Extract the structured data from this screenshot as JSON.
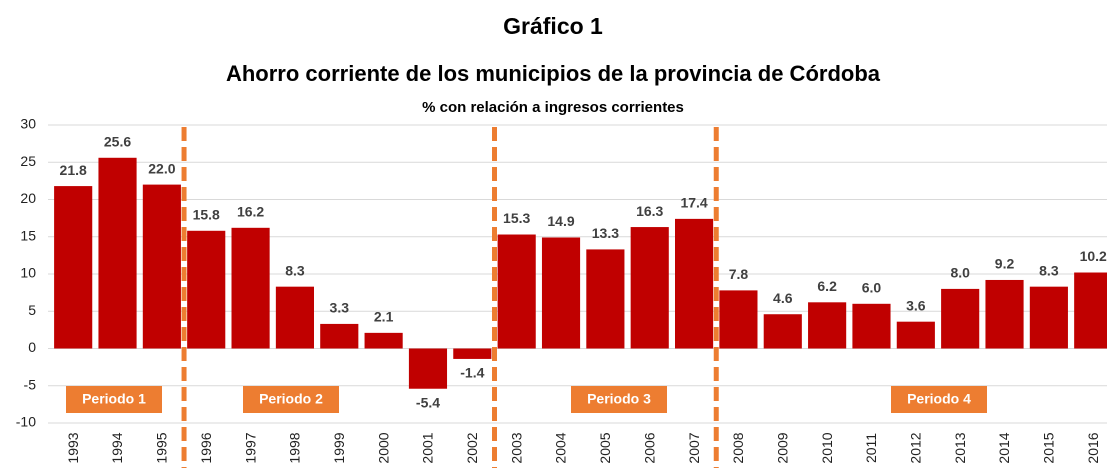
{
  "chart_data": {
    "type": "bar",
    "title": "Gráfico 1",
    "subtitle": "Ahorro corriente de los municipios de la provincia de Córdoba",
    "y_label": "% con relación a ingresos corrientes",
    "categories": [
      "1993",
      "1994",
      "1995",
      "1996",
      "1997",
      "1998",
      "1999",
      "2000",
      "2001",
      "2002",
      "2003",
      "2004",
      "2005",
      "2006",
      "2007",
      "2008",
      "2009",
      "2010",
      "2011",
      "2012",
      "2013",
      "2014",
      "2015",
      "2016"
    ],
    "values": [
      21.8,
      25.6,
      22.0,
      15.8,
      16.2,
      8.3,
      3.3,
      2.1,
      -5.4,
      -1.4,
      15.3,
      14.9,
      13.3,
      16.3,
      17.4,
      7.8,
      4.6,
      6.2,
      6.0,
      3.6,
      8.0,
      9.2,
      8.3,
      10.2
    ],
    "value_labels": [
      "21.8",
      "25.6",
      "22.0",
      "15.8",
      "16.2",
      "8.3",
      "3.3",
      "2.1",
      "-5.4",
      "-1.4",
      "15.3",
      "14.9",
      "13.3",
      "16.3",
      "17.4",
      "7.8",
      "4.6",
      "6.2",
      "6.0",
      "3.6",
      "8.0",
      "9.2",
      "8.3",
      "10.2"
    ],
    "color": "#c00000",
    "ylim": [
      -10,
      30
    ],
    "yticks": [
      -10,
      -5,
      0,
      5,
      10,
      15,
      20,
      25,
      30
    ],
    "grid": true,
    "periods": [
      {
        "label": "Periodo 1",
        "start": "1993",
        "end": "1995"
      },
      {
        "label": "Periodo 2",
        "start": "1996",
        "end": "2002"
      },
      {
        "label": "Periodo 3",
        "start": "2003",
        "end": "2007"
      },
      {
        "label": "Periodo 4",
        "start": "2008",
        "end": "2016"
      }
    ],
    "period_color": "#ed7d31"
  }
}
